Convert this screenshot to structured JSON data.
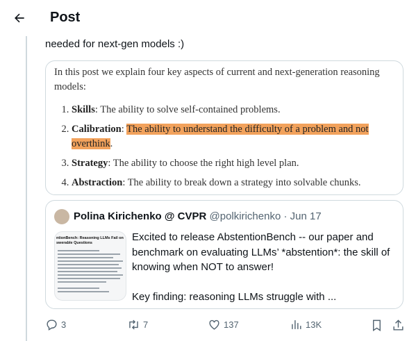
{
  "header": {
    "title": "Post"
  },
  "tweet": {
    "text": "needed for next-gen models :)"
  },
  "image": {
    "intro": "In this post we explain four key aspects of current and next-generation reasoning models:",
    "items": [
      {
        "term": "Skills",
        "segments": [
          {
            "text": ": The ability to solve self-contained problems.",
            "highlight": false
          }
        ]
      },
      {
        "term": "Calibration",
        "segments": [
          {
            "text": ": ",
            "highlight": false
          },
          {
            "text": "The ability to understand the difficulty of a problem and not overthink",
            "highlight": true
          },
          {
            "text": ".",
            "highlight": false
          }
        ]
      },
      {
        "term": "Strategy",
        "segments": [
          {
            "text": ": The ability to choose the right high level plan.",
            "highlight": false
          }
        ]
      },
      {
        "term": "Abstraction",
        "segments": [
          {
            "text": ": The ability to break down a strategy into solvable chunks.",
            "highlight": false
          }
        ]
      }
    ]
  },
  "quote": {
    "name": "Polina Kirichenko @ CVPR",
    "handle": "@polkirichenko",
    "date": "· Jun 17",
    "thumbnail_title": "ntionBench: Reasoning LLMs Fail on swerable Questions",
    "paragraphs": [
      "Excited to release AbstentionBench -- our paper and benchmark on evaluating LLMs’ *abstention*: the skill of knowing when NOT to answer!",
      "Key finding: reasoning LLMs struggle with ..."
    ]
  },
  "actions": {
    "replies": "3",
    "reposts": "7",
    "likes": "137",
    "views": "13K"
  }
}
